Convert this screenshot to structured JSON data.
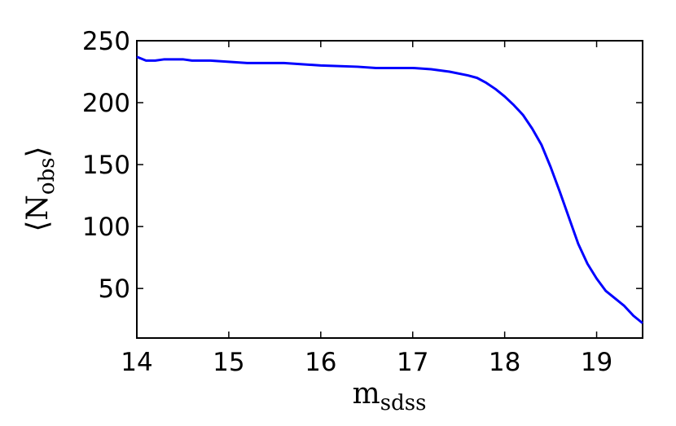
{
  "chart_data": {
    "type": "line",
    "xlabel": {
      "main": "m",
      "sub": "sdss"
    },
    "ylabel": {
      "open": "⟨",
      "main": "N",
      "sub": "obs",
      "close": "⟩"
    },
    "x": [
      14.0,
      14.1,
      14.2,
      14.3,
      14.4,
      14.5,
      14.6,
      14.8,
      15.0,
      15.2,
      15.6,
      16.0,
      16.4,
      16.6,
      17.0,
      17.2,
      17.4,
      17.6,
      17.7,
      17.8,
      17.9,
      18.0,
      18.1,
      18.2,
      18.3,
      18.4,
      18.5,
      18.6,
      18.7,
      18.8,
      18.9,
      19.0,
      19.1,
      19.2,
      19.3,
      19.4,
      19.5
    ],
    "series": [
      {
        "color": "#0000ff",
        "values": [
          237,
          234,
          234,
          235,
          235,
          235,
          234,
          234,
          233,
          232,
          232,
          230,
          229,
          228,
          228,
          227,
          225,
          222,
          220,
          216,
          211,
          205,
          198,
          190,
          179,
          166,
          148,
          128,
          107,
          86,
          70,
          58,
          48,
          42,
          36,
          28,
          22
        ]
      }
    ],
    "xlim": [
      14,
      19.5
    ],
    "xticks": [
      14,
      15,
      16,
      17,
      18,
      19
    ],
    "ylim": [
      10,
      250
    ],
    "yticks": [
      50,
      100,
      150,
      200,
      250
    ],
    "grid": false
  }
}
